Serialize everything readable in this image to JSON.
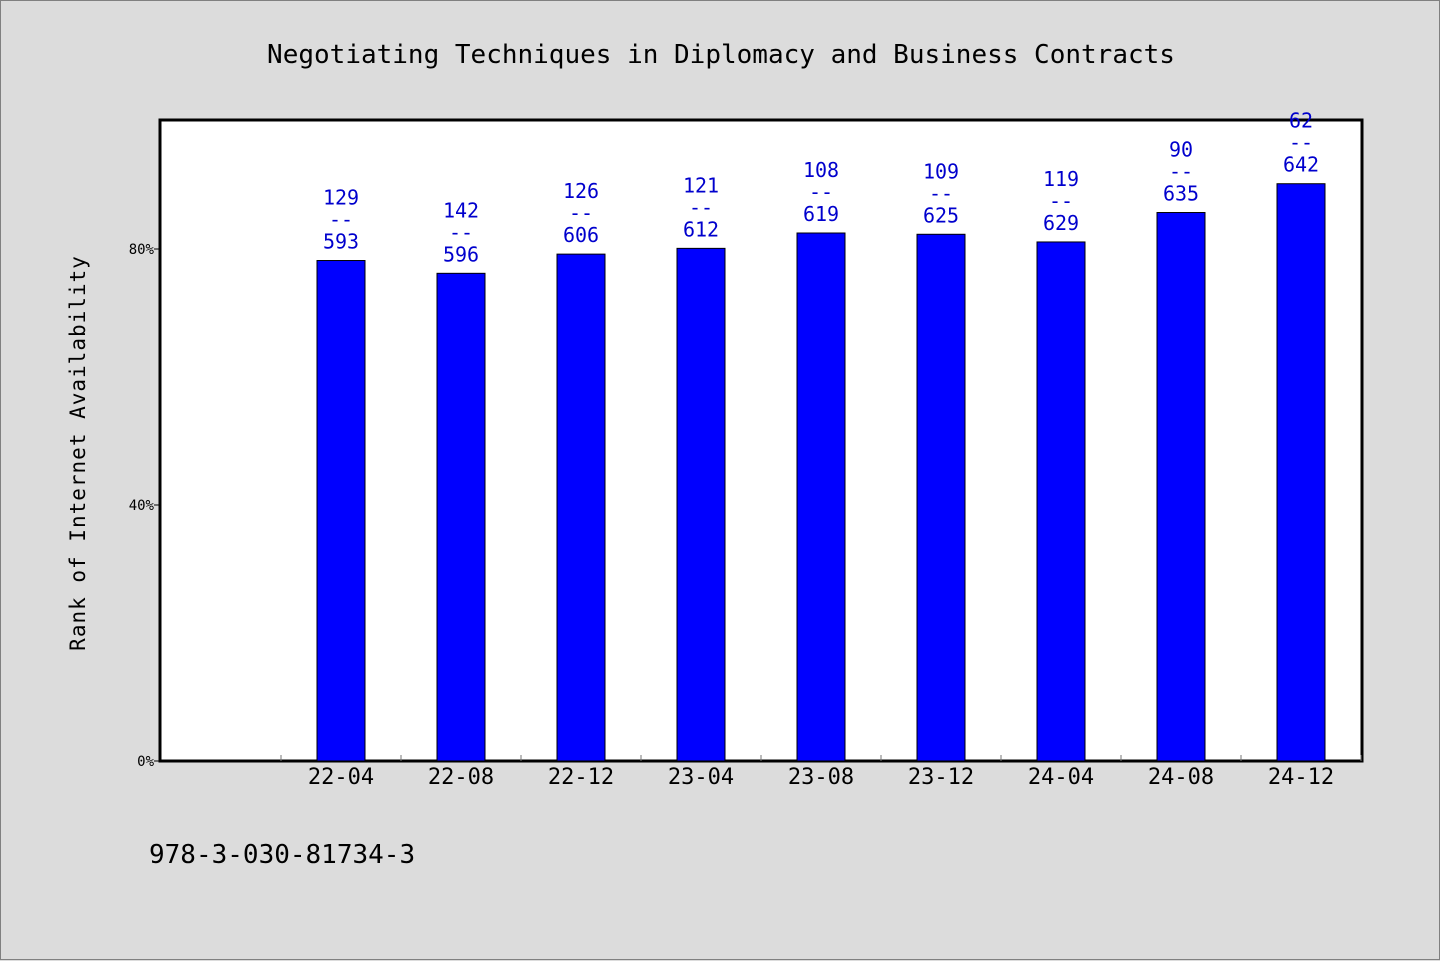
{
  "chart_data": {
    "type": "bar",
    "title": "Negotiating Techniques in Diplomacy and Business Contracts",
    "ylabel": "Rank of Internet Availability",
    "xlabel": "",
    "ylim": [
      0,
      100
    ],
    "yticks": [
      {
        "value": 0,
        "label": "0%"
      },
      {
        "value": 40,
        "label": "40%"
      },
      {
        "value": 80,
        "label": "80%"
      }
    ],
    "categories": [
      "22-04",
      "22-08",
      "22-12",
      "23-04",
      "23-08",
      "23-12",
      "24-04",
      "24-08",
      "24-12"
    ],
    "values": [
      78.2,
      76.2,
      79.2,
      80.1,
      82.5,
      82.3,
      81.1,
      85.7,
      90.2
    ],
    "labels": [
      {
        "top": "129",
        "sep": "--",
        "bottom": "593"
      },
      {
        "top": "142",
        "sep": "--",
        "bottom": "596"
      },
      {
        "top": "126",
        "sep": "--",
        "bottom": "606"
      },
      {
        "top": "121",
        "sep": "--",
        "bottom": "612"
      },
      {
        "top": "108",
        "sep": "--",
        "bottom": "619"
      },
      {
        "top": "109",
        "sep": "--",
        "bottom": "625"
      },
      {
        "top": "119",
        "sep": "--",
        "bottom": "629"
      },
      {
        "top": "90",
        "sep": "--",
        "bottom": "635"
      },
      {
        "top": "62",
        "sep": "--",
        "bottom": "642"
      }
    ],
    "bar_color": "#0000ff",
    "label_color": "#0000cd",
    "grid": false,
    "legend": "none"
  },
  "footer": {
    "isbn": "978-3-030-81734-3"
  }
}
